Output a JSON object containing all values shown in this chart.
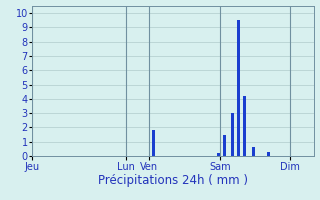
{
  "title": "",
  "xlabel": "Précipitations 24h ( mm )",
  "ylabel": "",
  "ylim": [
    0,
    10.5
  ],
  "yticks": [
    0,
    1,
    2,
    3,
    4,
    5,
    6,
    7,
    8,
    9,
    10
  ],
  "background_color": "#d8f0ef",
  "bar_color": "#1a3ecf",
  "grid_color": "#b0cccc",
  "tick_label_color": "#2233bb",
  "xlabel_color": "#2233bb",
  "xlabel_fontsize": 8.5,
  "tick_fontsize": 7,
  "day_labels": [
    "Jeu",
    "Lun",
    "Ven",
    "Sam",
    "Dim"
  ],
  "day_positions": [
    0,
    32,
    40,
    64,
    88
  ],
  "n_bars": 96,
  "bar_values": [
    0,
    0,
    0,
    0,
    0,
    0,
    0,
    0,
    0,
    0,
    0,
    0,
    0,
    0,
    0,
    0,
    0,
    0,
    0,
    0,
    0,
    0,
    0,
    0,
    0,
    0,
    0,
    0,
    0,
    0,
    0,
    0,
    0,
    0,
    0,
    0,
    0,
    0,
    0,
    0,
    0,
    1.8,
    0,
    0,
    0,
    0,
    0,
    0,
    0,
    0,
    0,
    0,
    0,
    0,
    0,
    0,
    0,
    0,
    0,
    0,
    0,
    0,
    0,
    0.2,
    0,
    1.5,
    0,
    0,
    3.0,
    0,
    9.5,
    0,
    4.2,
    0,
    0,
    0.6,
    0,
    0,
    0,
    0,
    0.25,
    0,
    0,
    0,
    0,
    0,
    0,
    0,
    0,
    0,
    0,
    0,
    0,
    0,
    0,
    0
  ]
}
